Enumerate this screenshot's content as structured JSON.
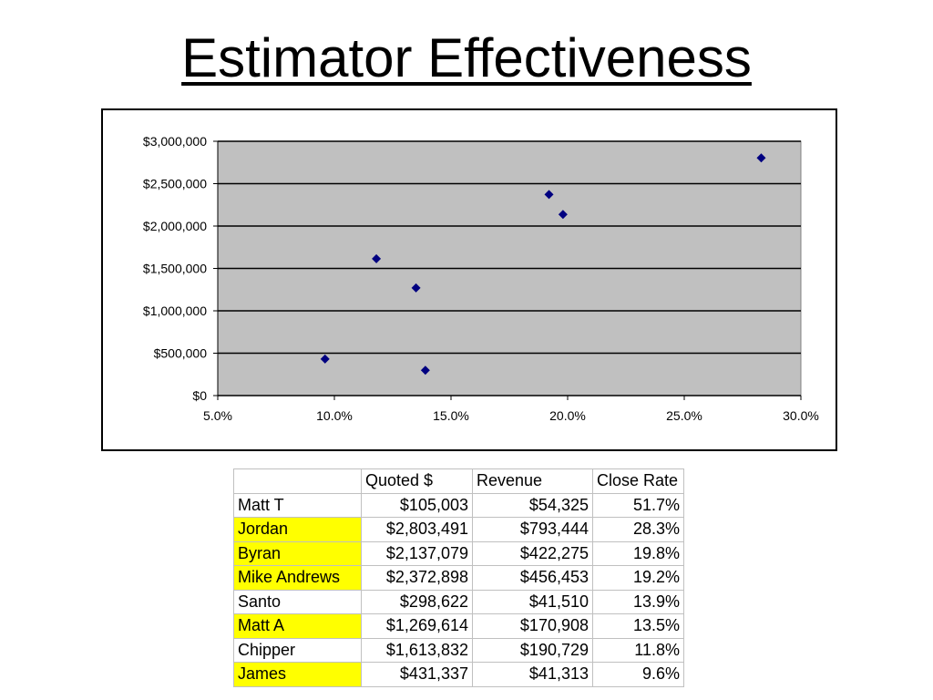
{
  "title": "Estimator Effectiveness",
  "colors": {
    "plot_area": "#c0c0c0",
    "marker": "#000080",
    "highlight": "#ffff00",
    "gridline": "#000000"
  },
  "chart_data": {
    "type": "scatter",
    "title": "",
    "xlabel": "",
    "ylabel": "",
    "xlim": [
      0.05,
      0.3
    ],
    "ylim": [
      0,
      3000000
    ],
    "x_ticks": [
      0.05,
      0.1,
      0.15,
      0.2,
      0.25,
      0.3
    ],
    "x_tick_labels": [
      "5.0%",
      "10.0%",
      "15.0%",
      "20.0%",
      "25.0%",
      "30.0%"
    ],
    "y_ticks": [
      0,
      500000,
      1000000,
      1500000,
      2000000,
      2500000,
      3000000
    ],
    "y_tick_labels": [
      "$0",
      "$500,000",
      "$1,000,000",
      "$1,500,000",
      "$2,000,000",
      "$2,500,000",
      "$3,000,000"
    ],
    "grid": "horizontal",
    "legend": "none",
    "marker": "diamond",
    "series": [
      {
        "x": [
          0.283,
          0.198,
          0.192,
          0.139,
          0.135,
          0.118,
          0.096
        ],
        "y": [
          2803491,
          2137079,
          2372898,
          298622,
          1269614,
          1613832,
          431337
        ]
      }
    ]
  },
  "table": {
    "headers": [
      "",
      "Quoted $",
      "Revenue",
      "Close Rate"
    ],
    "rows": [
      {
        "name": "Matt T",
        "quoted": "$105,003",
        "revenue": "$54,325",
        "close_rate": "51.7%",
        "highlight": false
      },
      {
        "name": "Jordan",
        "quoted": "$2,803,491",
        "revenue": "$793,444",
        "close_rate": "28.3%",
        "highlight": true
      },
      {
        "name": "Byran",
        "quoted": "$2,137,079",
        "revenue": "$422,275",
        "close_rate": "19.8%",
        "highlight": true
      },
      {
        "name": "Mike Andrews",
        "quoted": "$2,372,898",
        "revenue": "$456,453",
        "close_rate": "19.2%",
        "highlight": true
      },
      {
        "name": "Santo",
        "quoted": "$298,622",
        "revenue": "$41,510",
        "close_rate": "13.9%",
        "highlight": false
      },
      {
        "name": "Matt A",
        "quoted": "$1,269,614",
        "revenue": "$170,908",
        "close_rate": "13.5%",
        "highlight": true
      },
      {
        "name": "Chipper",
        "quoted": "$1,613,832",
        "revenue": "$190,729",
        "close_rate": "11.8%",
        "highlight": false
      },
      {
        "name": "James",
        "quoted": "$431,337",
        "revenue": "$41,313",
        "close_rate": "9.6%",
        "highlight": true
      }
    ]
  }
}
